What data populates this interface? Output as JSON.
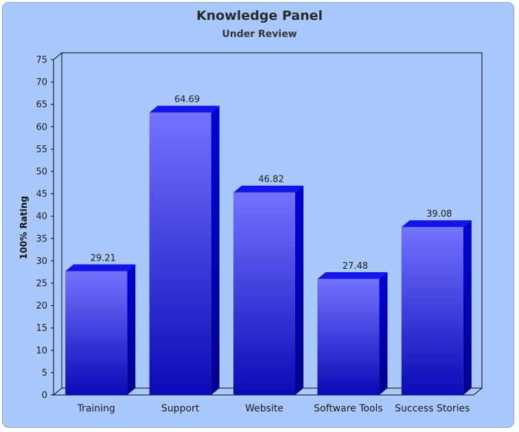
{
  "chart_data": {
    "type": "bar",
    "title": "Knowledge Panel",
    "subtitle": "Under Review",
    "xlabel": "",
    "ylabel": "100% Rating",
    "categories": [
      "Training",
      "Support",
      "Website",
      "Software Tools",
      "Success Stories"
    ],
    "values": [
      29.21,
      64.69,
      46.82,
      27.48,
      39.08
    ],
    "value_labels": [
      "29.21",
      "64.69",
      "46.82",
      "27.48",
      "39.08"
    ],
    "ylim": [
      0,
      75
    ],
    "y_ticks": [
      "0",
      "5",
      "10",
      "15",
      "20",
      "25",
      "30",
      "35",
      "40",
      "45",
      "50",
      "55",
      "60",
      "65",
      "70",
      "75"
    ],
    "grid": false,
    "legend": "none",
    "colors": {
      "panel_bg": "#a9c8fb",
      "bar_top": "#7373ff",
      "bar_bottom": "#0a0ab8",
      "bar_side": "#0000c8",
      "bar_cap": "#1515e8"
    }
  }
}
